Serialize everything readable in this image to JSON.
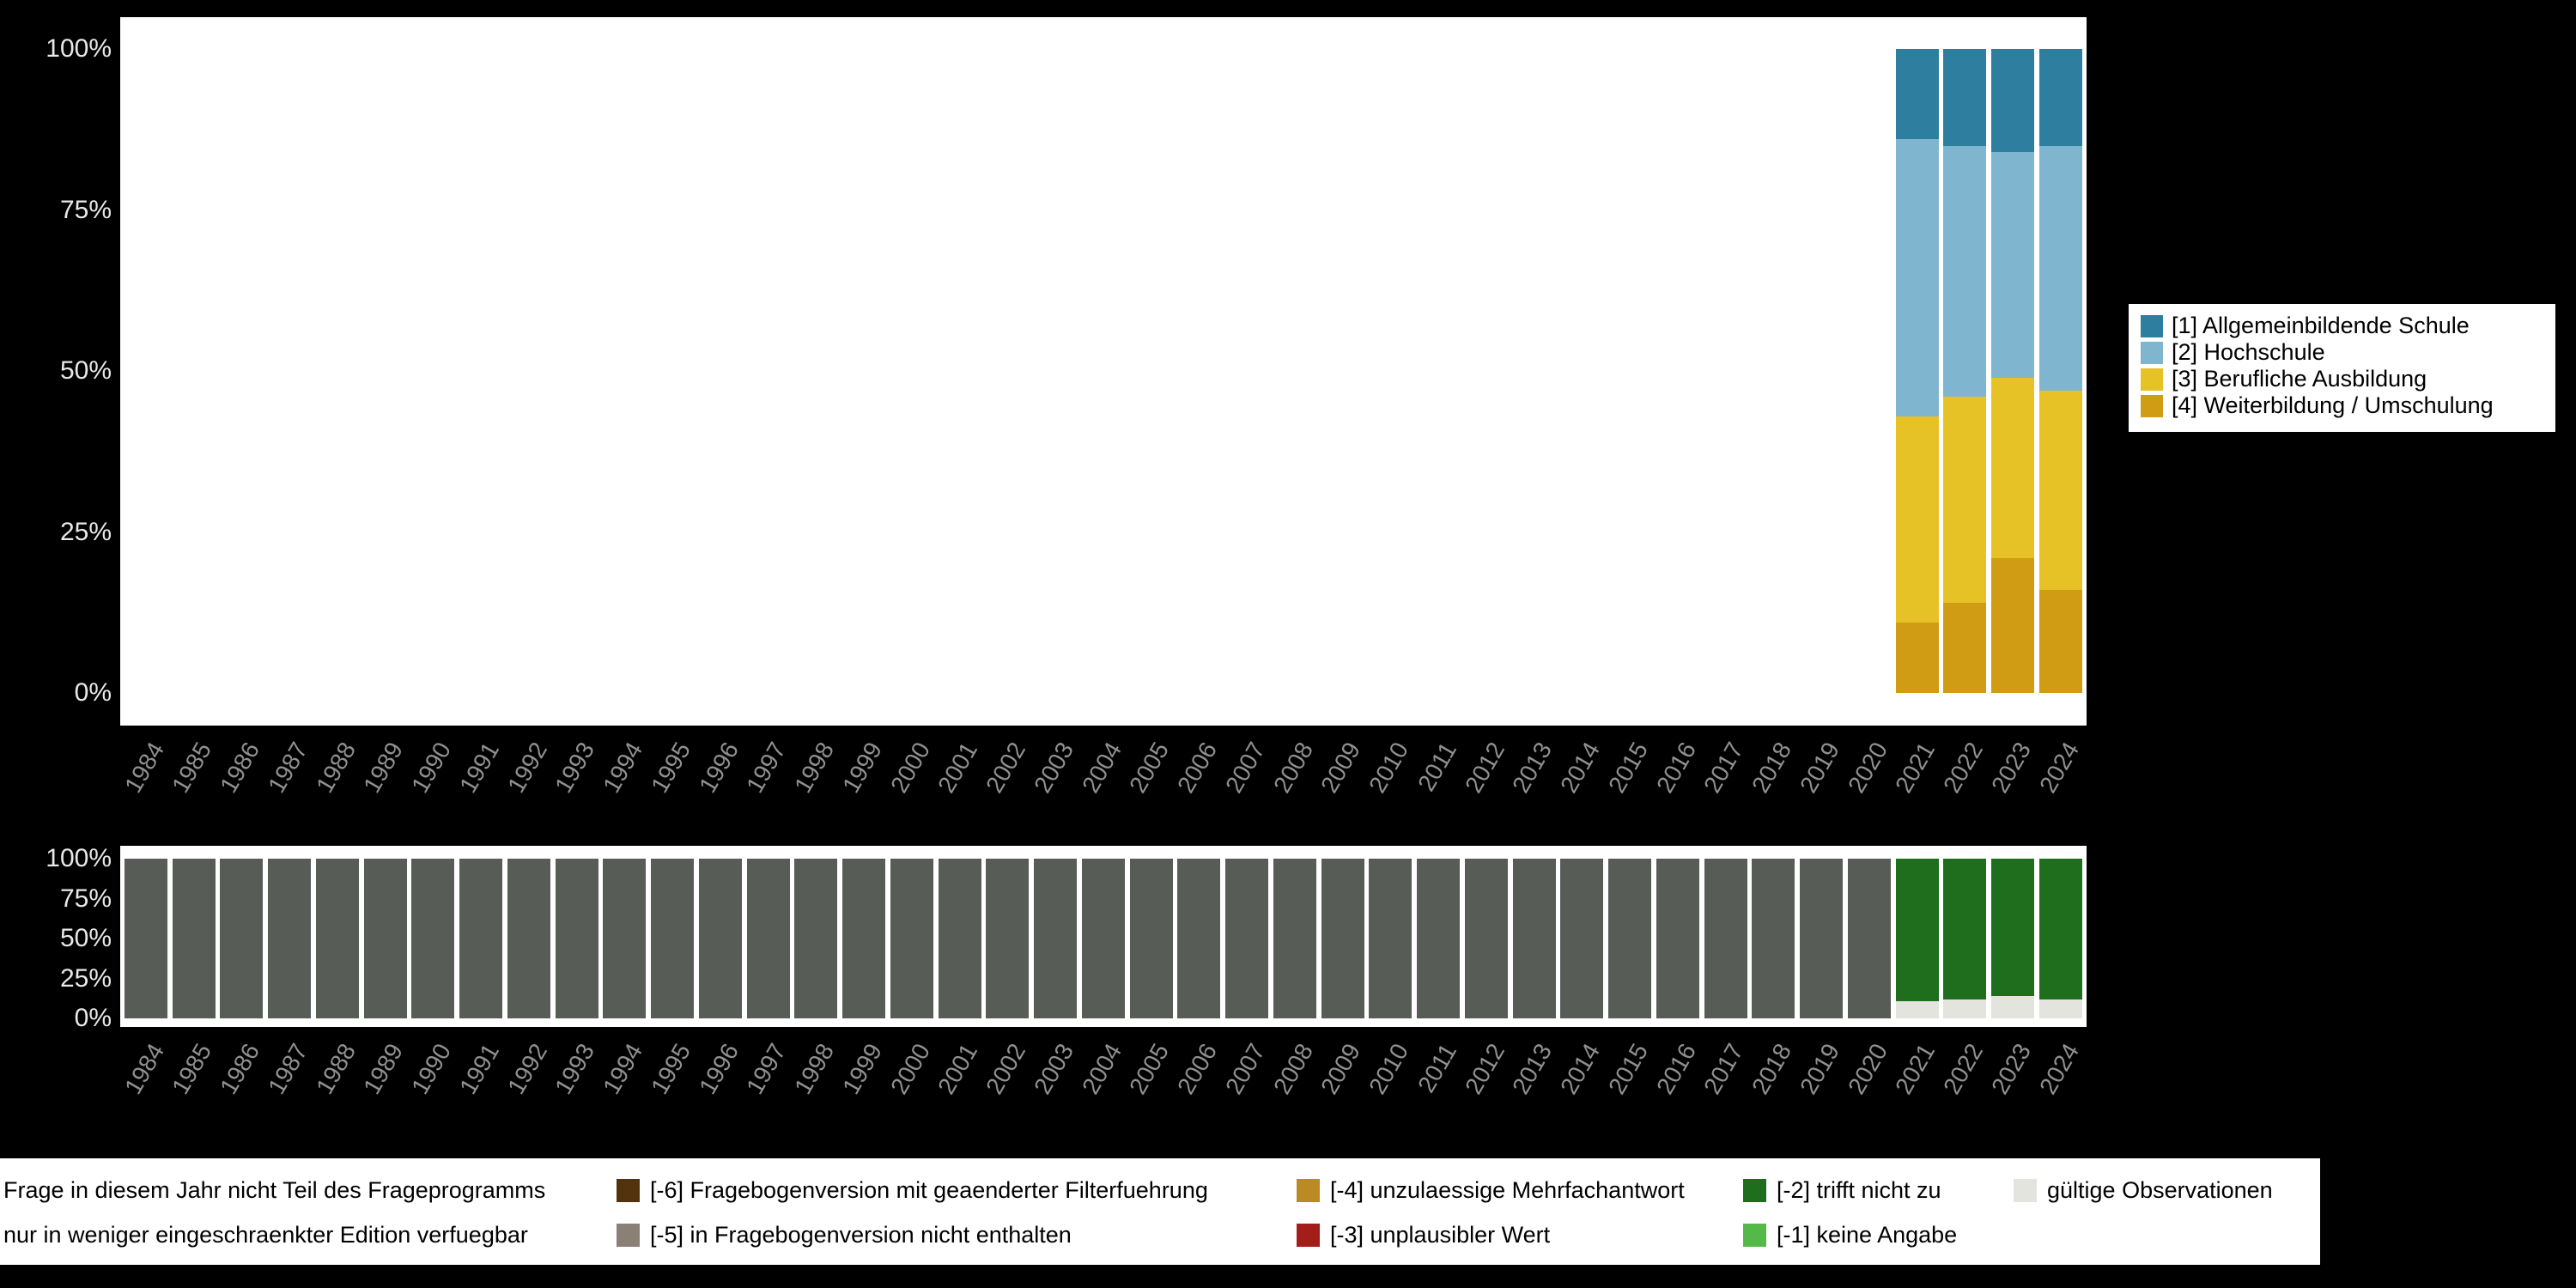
{
  "page": {
    "background": "#000000",
    "plot_background": "#ffffff",
    "axis_tick_color": "#e8e8e8",
    "year_label_color": "#909090"
  },
  "chart_data": [
    {
      "type": "bar",
      "stacked": true,
      "title": "",
      "xlabel": "",
      "ylabel": "",
      "ylim": [
        0,
        100
      ],
      "grid": false,
      "legend_position": "right",
      "categories": [
        "1984",
        "1985",
        "1986",
        "1987",
        "1988",
        "1989",
        "1990",
        "1991",
        "1992",
        "1993",
        "1994",
        "1995",
        "1996",
        "1997",
        "1998",
        "1999",
        "2000",
        "2001",
        "2002",
        "2003",
        "2004",
        "2005",
        "2006",
        "2007",
        "2008",
        "2009",
        "2010",
        "2011",
        "2012",
        "2013",
        "2014",
        "2015",
        "2016",
        "2017",
        "2018",
        "2019",
        "2020",
        "2021",
        "2022",
        "2023",
        "2024"
      ],
      "yticks": [
        {
          "label": "100%",
          "value": 100
        },
        {
          "label": "75%",
          "value": 75
        },
        {
          "label": "50%",
          "value": 50
        },
        {
          "label": "25%",
          "value": 25
        },
        {
          "label": "0%",
          "value": 0
        }
      ],
      "series": [
        {
          "name": "[1] Allgemeinbildende Schule",
          "color": "#2e7f9f",
          "values": [
            null,
            null,
            null,
            null,
            null,
            null,
            null,
            null,
            null,
            null,
            null,
            null,
            null,
            null,
            null,
            null,
            null,
            null,
            null,
            null,
            null,
            null,
            null,
            null,
            null,
            null,
            null,
            null,
            null,
            null,
            null,
            null,
            null,
            null,
            null,
            null,
            null,
            14,
            15,
            16,
            15
          ]
        },
        {
          "name": "[2] Hochschule",
          "color": "#7fb5cf",
          "values": [
            null,
            null,
            null,
            null,
            null,
            null,
            null,
            null,
            null,
            null,
            null,
            null,
            null,
            null,
            null,
            null,
            null,
            null,
            null,
            null,
            null,
            null,
            null,
            null,
            null,
            null,
            null,
            null,
            null,
            null,
            null,
            null,
            null,
            null,
            null,
            null,
            null,
            43,
            39,
            35,
            38
          ]
        },
        {
          "name": "[3] Berufliche Ausbildung",
          "color": "#e7c227",
          "values": [
            null,
            null,
            null,
            null,
            null,
            null,
            null,
            null,
            null,
            null,
            null,
            null,
            null,
            null,
            null,
            null,
            null,
            null,
            null,
            null,
            null,
            null,
            null,
            null,
            null,
            null,
            null,
            null,
            null,
            null,
            null,
            null,
            null,
            null,
            null,
            null,
            null,
            32,
            32,
            28,
            31
          ]
        },
        {
          "name": "[4] Weiterbildung / Umschulung",
          "color": "#d09c13",
          "values": [
            null,
            null,
            null,
            null,
            null,
            null,
            null,
            null,
            null,
            null,
            null,
            null,
            null,
            null,
            null,
            null,
            null,
            null,
            null,
            null,
            null,
            null,
            null,
            null,
            null,
            null,
            null,
            null,
            null,
            null,
            null,
            null,
            null,
            null,
            null,
            null,
            null,
            11,
            14,
            21,
            16
          ]
        }
      ]
    },
    {
      "type": "bar",
      "stacked": true,
      "title": "",
      "xlabel": "",
      "ylabel": "",
      "ylim": [
        0,
        100
      ],
      "grid": false,
      "legend_position": "bottom",
      "categories": [
        "1984",
        "1985",
        "1986",
        "1987",
        "1988",
        "1989",
        "1990",
        "1991",
        "1992",
        "1993",
        "1994",
        "1995",
        "1996",
        "1997",
        "1998",
        "1999",
        "2000",
        "2001",
        "2002",
        "2003",
        "2004",
        "2005",
        "2006",
        "2007",
        "2008",
        "2009",
        "2010",
        "2011",
        "2012",
        "2013",
        "2014",
        "2015",
        "2016",
        "2017",
        "2018",
        "2019",
        "2020",
        "2021",
        "2022",
        "2023",
        "2024"
      ],
      "yticks": [
        {
          "label": "100%",
          "value": 100
        },
        {
          "label": "75%",
          "value": 75
        },
        {
          "label": "50%",
          "value": 50
        },
        {
          "label": "25%",
          "value": 25
        },
        {
          "label": "0%",
          "value": 0
        }
      ],
      "series": [
        {
          "name": "Frage in diesem Jahr nicht Teil des Frageprogramms",
          "color": "#575c57",
          "values": [
            100,
            100,
            100,
            100,
            100,
            100,
            100,
            100,
            100,
            100,
            100,
            100,
            100,
            100,
            100,
            100,
            100,
            100,
            100,
            100,
            100,
            100,
            100,
            100,
            100,
            100,
            100,
            100,
            100,
            100,
            100,
            100,
            100,
            100,
            100,
            100,
            100,
            null,
            null,
            null,
            null
          ]
        },
        {
          "name": "[-2] trifft nicht zu",
          "color": "#1e6e1e",
          "values": [
            null,
            null,
            null,
            null,
            null,
            null,
            null,
            null,
            null,
            null,
            null,
            null,
            null,
            null,
            null,
            null,
            null,
            null,
            null,
            null,
            null,
            null,
            null,
            null,
            null,
            null,
            null,
            null,
            null,
            null,
            null,
            null,
            null,
            null,
            null,
            null,
            null,
            89,
            88,
            86,
            88
          ]
        },
        {
          "name": "gültige Observationen",
          "color": "#e4e4de",
          "values": [
            null,
            null,
            null,
            null,
            null,
            null,
            null,
            null,
            null,
            null,
            null,
            null,
            null,
            null,
            null,
            null,
            null,
            null,
            null,
            null,
            null,
            null,
            null,
            null,
            null,
            null,
            null,
            null,
            null,
            null,
            null,
            null,
            null,
            null,
            null,
            null,
            null,
            11,
            12,
            14,
            12
          ]
        }
      ]
    }
  ],
  "series_legend": {
    "items": [
      {
        "label": "[1] Allgemeinbildende Schule",
        "color": "#2e7f9f"
      },
      {
        "label": "[2] Hochschule",
        "color": "#7fb5cf"
      },
      {
        "label": "[3] Berufliche Ausbildung",
        "color": "#e7c227"
      },
      {
        "label": "[4] Weiterbildung / Umschulung",
        "color": "#d09c13"
      }
    ]
  },
  "missings_legend": {
    "rows": [
      [
        {
          "color": null,
          "label": "Frage in diesem Jahr nicht Teil des Frageprogramms"
        },
        {
          "color": "#53320e",
          "label": "[-6] Fragebogenversion mit geaenderter Filterfuehrung"
        },
        {
          "color": "#ba8b25",
          "label": "[-4] unzulaessige Mehrfachantwort"
        },
        {
          "color": "#1e6e1e",
          "label": "[-2] trifft nicht zu"
        },
        {
          "color": "#e4e4de",
          "label": "gültige Observationen"
        }
      ],
      [
        {
          "color": null,
          "label": "nur in weniger eingeschraenkter Edition verfuegbar"
        },
        {
          "color": "#8a8076",
          "label": "[-5] in Fragebogenversion nicht enthalten"
        },
        {
          "color": "#a51d18",
          "label": "[-3] unplausibler Wert"
        },
        {
          "color": "#55b94a",
          "label": "[-1] keine Angabe"
        }
      ]
    ]
  }
}
